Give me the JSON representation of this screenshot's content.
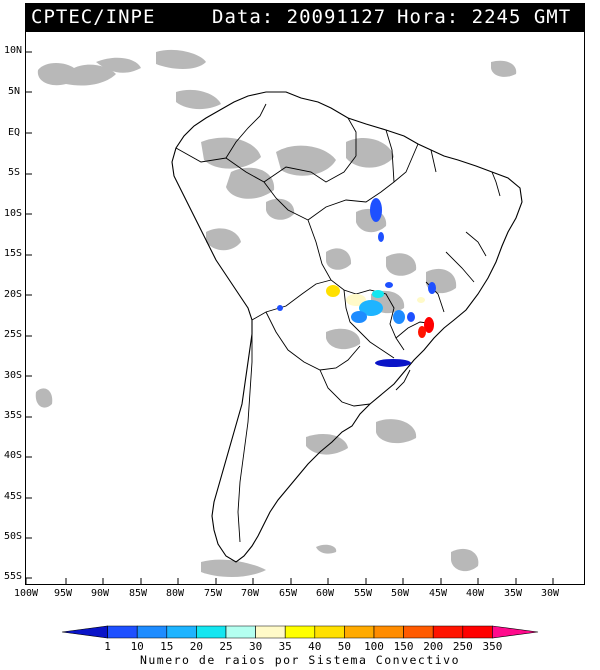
{
  "header": {
    "agency": "CPTEC/INPE",
    "data_label": "Data: 20091127",
    "hora_label": "Hora: 2245 GMT"
  },
  "map": {
    "lat_labels": [
      "10N",
      "5N",
      "EQ",
      "5S",
      "10S",
      "15S",
      "20S",
      "25S",
      "30S",
      "35S",
      "40S",
      "45S",
      "50S",
      "55S"
    ],
    "lon_labels": [
      "100W",
      "95W",
      "90W",
      "85W",
      "80W",
      "75W",
      "70W",
      "65W",
      "60W",
      "55W",
      "50W",
      "45W",
      "40W",
      "35W",
      "30W"
    ]
  },
  "colorbar": {
    "values": [
      "1",
      "10",
      "15",
      "20",
      "25",
      "30",
      "35",
      "40",
      "50",
      "100",
      "150",
      "200",
      "250",
      "350"
    ],
    "colors": [
      "#0a14c8",
      "#1e50ff",
      "#1e8cff",
      "#1eb4ff",
      "#14e6f0",
      "#b4fff0",
      "#fffac8",
      "#ffff00",
      "#ffe000",
      "#ffaa00",
      "#ff8c00",
      "#ff5a00",
      "#ff1400",
      "#ff0000",
      "#ff0a8c"
    ],
    "caption": "Numero de raios por Sistema Convectivo"
  }
}
